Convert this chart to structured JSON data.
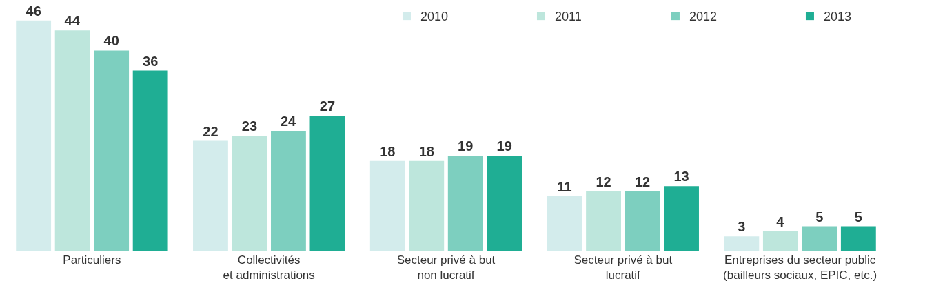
{
  "chart_data": {
    "type": "bar",
    "categories": [
      "Particuliers",
      "Collectivités\net administrations",
      "Secteur privé à but\nnon lucratif",
      "Secteur privé à but\nlucratif",
      "Entreprises du secteur public\n(bailleurs sociaux, EPIC, etc.)"
    ],
    "series": [
      {
        "name": "2010",
        "color": "#d3ecec",
        "values": [
          46,
          22,
          18,
          11,
          3
        ]
      },
      {
        "name": "2011",
        "color": "#bde6dc",
        "values": [
          44,
          23,
          18,
          12,
          4
        ]
      },
      {
        "name": "2012",
        "color": "#7dcfbf",
        "values": [
          40,
          24,
          19,
          12,
          5
        ]
      },
      {
        "name": "2013",
        "color": "#1fae94",
        "values": [
          36,
          27,
          19,
          13,
          5
        ]
      }
    ],
    "data_labels": true,
    "legend": "top right"
  }
}
